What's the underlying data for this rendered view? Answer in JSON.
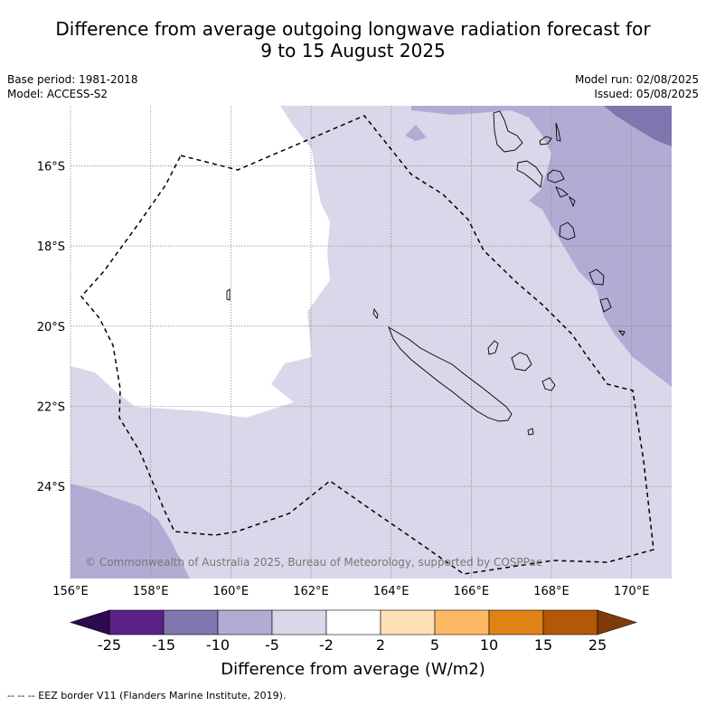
{
  "title": {
    "line1": "Difference from average outgoing longwave radiation forecast for",
    "line2": "9 to 15 August 2025"
  },
  "meta": {
    "base_period": "Base period: 1981-2018",
    "model": "Model: ACCESS-S2",
    "model_run": "Model run: 02/08/2025",
    "issued": "Issued: 05/08/2025"
  },
  "map": {
    "lon_range": [
      156,
      171
    ],
    "lat_range": [
      -26.3,
      -14.5
    ],
    "lon_ticks": [
      "156°E",
      "158°E",
      "160°E",
      "162°E",
      "164°E",
      "166°E",
      "168°E",
      "170°E"
    ],
    "lat_ticks": [
      "16°S",
      "18°S",
      "20°S",
      "22°S",
      "24°S"
    ],
    "copyright": "© Commonwealth of Australia 2025, Bureau of Meteorology, supported by COSPPac",
    "colors": {
      "-5_-2": "#d8d8ea",
      "-10_-5": "#b1acd3",
      "-15_-10": "#8075ae",
      "-2_2": "#ffffff",
      "coast": "#000000",
      "eez": "#000000"
    }
  },
  "colorbar": {
    "labels": [
      "-25",
      "-15",
      "-10",
      "-5",
      "-2",
      "2",
      "5",
      "10",
      "15",
      "25"
    ],
    "colors": [
      "#5a2289",
      "#8075ae",
      "#b1acd3",
      "#d8d8ea",
      "#ffffff",
      "#fee0b6",
      "#fdb863",
      "#e08214",
      "#b35806"
    ],
    "under_color": "#2d0a4e",
    "over_color": "#7f3b08",
    "title": "Difference from average (W/m2)"
  },
  "footnote": "--  --  -- EEZ border V11 (Flanders Marine Institute, 2019)."
}
